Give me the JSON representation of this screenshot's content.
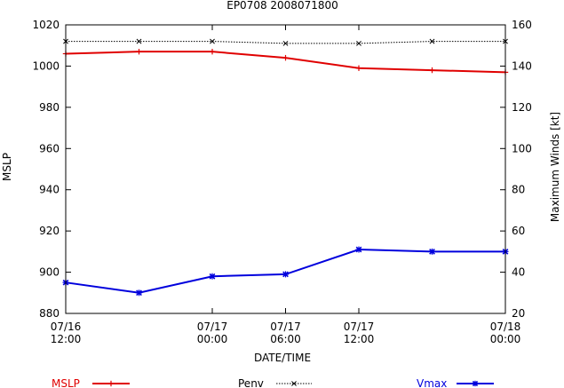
{
  "chart_data": {
    "type": "line",
    "title": "EP0708 2008071800",
    "xlabel": "DATE/TIME",
    "ylabel_left": "MSLP",
    "ylabel_right": "Maximum Winds [kt]",
    "x_ticks": [
      {
        "x": 0,
        "line1": "07/16",
        "line2": "12:00"
      },
      {
        "x": 12,
        "line1": "07/17",
        "line2": "00:00"
      },
      {
        "x": 18,
        "line1": "07/17",
        "line2": "06:00"
      },
      {
        "x": 24,
        "line1": "07/17",
        "line2": "12:00"
      },
      {
        "x": 36,
        "line1": "07/18",
        "line2": "00:00"
      }
    ],
    "x_unit": "hours from 07/16 12:00",
    "xlim": [
      0,
      36
    ],
    "ylim_left": [
      880,
      1020
    ],
    "ylim_right": [
      20,
      160
    ],
    "yticks_left": [
      880,
      900,
      920,
      940,
      960,
      980,
      1000,
      1020
    ],
    "yticks_right": [
      20,
      40,
      60,
      80,
      100,
      120,
      140,
      160
    ],
    "series": [
      {
        "name": "MSLP",
        "axis": "left",
        "color": "#e00000",
        "marker": "plus",
        "x": [
          0,
          6,
          12,
          18,
          24,
          30,
          36
        ],
        "values": [
          1006,
          1007,
          1007,
          1004,
          999,
          998,
          997
        ]
      },
      {
        "name": "Penv",
        "axis": "left",
        "color": "#000000",
        "marker": "cross",
        "x": [
          0,
          6,
          12,
          18,
          24,
          30,
          36
        ],
        "values": [
          1012,
          1012,
          1012,
          1011,
          1011,
          1012,
          1012
        ]
      },
      {
        "name": "Vmax",
        "axis": "right",
        "color": "#0000dd",
        "marker": "star",
        "x": [
          0,
          6,
          12,
          18,
          24,
          30,
          36
        ],
        "values": [
          35,
          30,
          38,
          39,
          51,
          50,
          50
        ]
      }
    ],
    "legend_position": "bottom"
  }
}
